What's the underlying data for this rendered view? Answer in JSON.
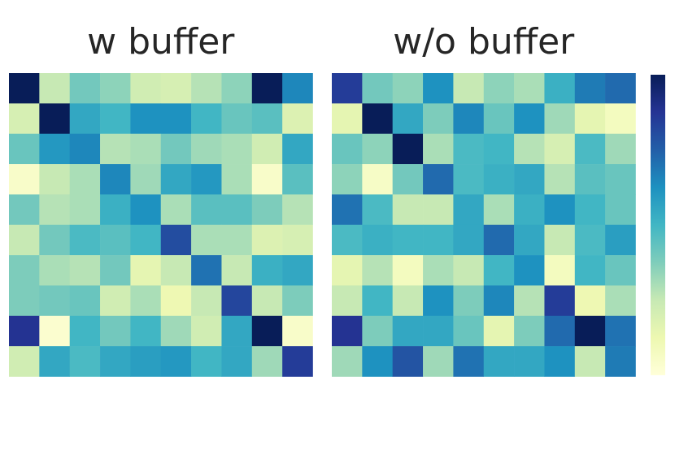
{
  "chart_data": [
    {
      "type": "heatmap",
      "title": "w buffer",
      "vlim": [
        0,
        1
      ],
      "colormap": [
        "#ffffd9",
        "#edf8b1",
        "#c7e9b4",
        "#7fcdbb",
        "#41b6c4",
        "#1d91c0",
        "#225ea8",
        "#253494",
        "#081d58"
      ],
      "values": [
        [
          1.0,
          0.25,
          0.4,
          0.35,
          0.22,
          0.2,
          0.28,
          0.35,
          1.0,
          0.65
        ],
        [
          0.2,
          1.0,
          0.55,
          0.5,
          0.62,
          0.62,
          0.5,
          0.42,
          0.45,
          0.18
        ],
        [
          0.42,
          0.6,
          0.65,
          0.28,
          0.3,
          0.4,
          0.32,
          0.3,
          0.22,
          0.55
        ],
        [
          0.05,
          0.25,
          0.3,
          0.65,
          0.32,
          0.55,
          0.6,
          0.3,
          0.05,
          0.45
        ],
        [
          0.4,
          0.28,
          0.3,
          0.52,
          0.62,
          0.3,
          0.45,
          0.45,
          0.38,
          0.28
        ],
        [
          0.25,
          0.4,
          0.48,
          0.45,
          0.5,
          0.8,
          0.3,
          0.3,
          0.18,
          0.2
        ],
        [
          0.38,
          0.3,
          0.28,
          0.4,
          0.15,
          0.25,
          0.7,
          0.25,
          0.52,
          0.55
        ],
        [
          0.38,
          0.4,
          0.42,
          0.22,
          0.3,
          0.12,
          0.25,
          0.82,
          0.25,
          0.38
        ],
        [
          0.88,
          0.03,
          0.5,
          0.4,
          0.5,
          0.32,
          0.22,
          0.55,
          1.0,
          0.05
        ],
        [
          0.22,
          0.55,
          0.48,
          0.55,
          0.58,
          0.6,
          0.5,
          0.55,
          0.32,
          0.85
        ]
      ]
    },
    {
      "type": "heatmap",
      "title": "w/o buffer",
      "vlim": [
        0,
        1
      ],
      "colormap": [
        "#ffffd9",
        "#edf8b1",
        "#c7e9b4",
        "#7fcdbb",
        "#41b6c4",
        "#1d91c0",
        "#225ea8",
        "#253494",
        "#081d58"
      ],
      "values": [
        [
          0.85,
          0.4,
          0.35,
          0.62,
          0.25,
          0.35,
          0.3,
          0.52,
          0.68,
          0.72
        ],
        [
          0.15,
          1.0,
          0.55,
          0.38,
          0.65,
          0.42,
          0.62,
          0.32,
          0.15,
          0.08
        ],
        [
          0.42,
          0.35,
          1.0,
          0.3,
          0.48,
          0.5,
          0.28,
          0.2,
          0.48,
          0.32
        ],
        [
          0.35,
          0.06,
          0.4,
          0.72,
          0.48,
          0.52,
          0.55,
          0.28,
          0.45,
          0.42
        ],
        [
          0.7,
          0.48,
          0.25,
          0.25,
          0.55,
          0.3,
          0.52,
          0.62,
          0.5,
          0.42
        ],
        [
          0.48,
          0.52,
          0.5,
          0.5,
          0.55,
          0.72,
          0.55,
          0.25,
          0.48,
          0.58
        ],
        [
          0.15,
          0.28,
          0.08,
          0.3,
          0.25,
          0.5,
          0.62,
          0.08,
          0.5,
          0.42
        ],
        [
          0.25,
          0.5,
          0.25,
          0.62,
          0.38,
          0.65,
          0.28,
          0.85,
          0.12,
          0.3
        ],
        [
          0.88,
          0.38,
          0.55,
          0.55,
          0.42,
          0.15,
          0.38,
          0.72,
          1.0,
          0.7
        ],
        [
          0.32,
          0.62,
          0.78,
          0.32,
          0.7,
          0.55,
          0.55,
          0.62,
          0.25,
          0.68
        ]
      ]
    }
  ]
}
